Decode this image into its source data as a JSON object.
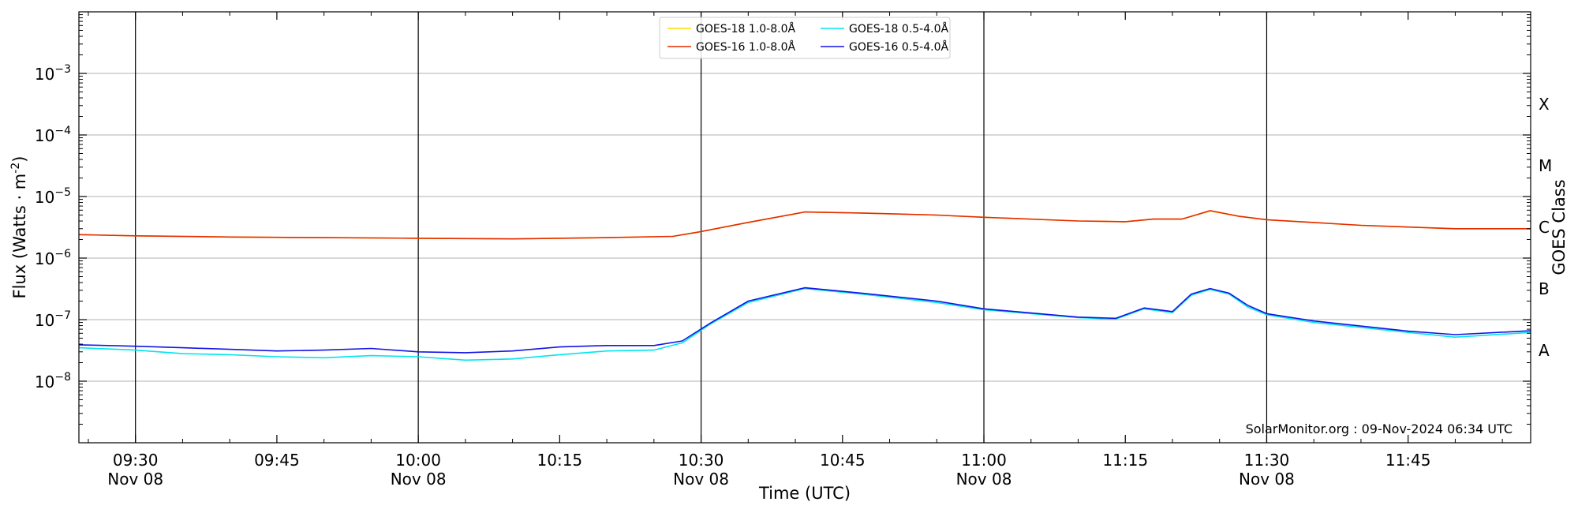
{
  "chart_data": {
    "type": "line",
    "xlabel": "Time (UTC)",
    "ylabel": "Flux (Watts · m",
    "ylabel_superscript": "-2",
    "ylabel_close": ")",
    "y2label": "GOES Class",
    "yscale": "log",
    "xlim": [
      "09:24",
      "11:58"
    ],
    "ylim": [
      1e-09,
      0.01
    ],
    "grid": "horizontal",
    "legend_position": "top-center",
    "watermark": "SolarMonitor.org : 09-Nov-2024 06:34 UTC",
    "x_ticks": [
      {
        "time": "09:30",
        "line1": "09:30",
        "line2": "Nov 08",
        "major": true
      },
      {
        "time": "09:45",
        "line1": "09:45",
        "line2": "",
        "major": false
      },
      {
        "time": "10:00",
        "line1": "10:00",
        "line2": "Nov 08",
        "major": true
      },
      {
        "time": "10:15",
        "line1": "10:15",
        "line2": "",
        "major": false
      },
      {
        "time": "10:30",
        "line1": "10:30",
        "line2": "Nov 08",
        "major": true
      },
      {
        "time": "10:45",
        "line1": "10:45",
        "line2": "",
        "major": false
      },
      {
        "time": "11:00",
        "line1": "11:00",
        "line2": "Nov 08",
        "major": true
      },
      {
        "time": "11:15",
        "line1": "11:15",
        "line2": "",
        "major": false
      },
      {
        "time": "11:30",
        "line1": "11:30",
        "line2": "Nov 08",
        "major": true
      },
      {
        "time": "11:45",
        "line1": "11:45",
        "line2": "",
        "major": false
      }
    ],
    "y_ticks": [
      {
        "value": 1e-08,
        "base": "10",
        "exp": "−8"
      },
      {
        "value": 1e-07,
        "base": "10",
        "exp": "−7"
      },
      {
        "value": 1e-06,
        "base": "10",
        "exp": "−6"
      },
      {
        "value": 1e-05,
        "base": "10",
        "exp": "−5"
      },
      {
        "value": 0.0001,
        "base": "10",
        "exp": "−4"
      },
      {
        "value": 0.001,
        "base": "10",
        "exp": "−3"
      }
    ],
    "goes_classes": [
      {
        "label": "A",
        "value": 3.16e-08
      },
      {
        "label": "B",
        "value": 3.16e-07
      },
      {
        "label": "C",
        "value": 3.16e-06
      },
      {
        "label": "M",
        "value": 3.16e-05
      },
      {
        "label": "X",
        "value": 0.000316
      }
    ],
    "series": [
      {
        "name": "GOES-18 1.0-8.0Å",
        "color": "#ffd700",
        "x": [
          "09:24",
          "09:30",
          "09:40",
          "09:50",
          "10:00",
          "10:10",
          "10:20",
          "10:27",
          "10:30",
          "10:35",
          "10:41",
          "10:47",
          "10:55",
          "11:00",
          "11:10",
          "11:15",
          "11:18",
          "11:21",
          "11:24",
          "11:27",
          "11:30",
          "11:40",
          "11:50",
          "11:58"
        ],
        "values": [
          2.4e-06,
          2.3e-06,
          2.2e-06,
          2.15e-06,
          2.1e-06,
          2.05e-06,
          2.15e-06,
          2.25e-06,
          2.7e-06,
          3.8e-06,
          5.6e-06,
          5.4e-06,
          5e-06,
          4.6e-06,
          4e-06,
          3.9e-06,
          4.3e-06,
          4.3e-06,
          5.8e-06,
          4.8e-06,
          4.2e-06,
          3.4e-06,
          3e-06,
          3e-06
        ]
      },
      {
        "name": "GOES-16 1.0-8.0Å",
        "color": "#e52b00",
        "x": [
          "09:24",
          "09:30",
          "09:40",
          "09:50",
          "10:00",
          "10:10",
          "10:20",
          "10:27",
          "10:30",
          "10:35",
          "10:41",
          "10:47",
          "10:55",
          "11:00",
          "11:10",
          "11:15",
          "11:18",
          "11:21",
          "11:24",
          "11:27",
          "11:30",
          "11:40",
          "11:50",
          "11:58"
        ],
        "values": [
          2.4e-06,
          2.3e-06,
          2.2e-06,
          2.15e-06,
          2.1e-06,
          2.05e-06,
          2.15e-06,
          2.25e-06,
          2.7e-06,
          3.8e-06,
          5.6e-06,
          5.4e-06,
          5e-06,
          4.6e-06,
          4e-06,
          3.9e-06,
          4.3e-06,
          4.3e-06,
          5.9e-06,
          4.8e-06,
          4.2e-06,
          3.4e-06,
          3e-06,
          3e-06
        ]
      },
      {
        "name": "GOES-18 0.5-4.0Å",
        "color": "#00e5ee",
        "x": [
          "09:24",
          "09:30",
          "09:35",
          "09:40",
          "09:45",
          "09:50",
          "09:55",
          "10:00",
          "10:05",
          "10:10",
          "10:15",
          "10:20",
          "10:25",
          "10:28",
          "10:31",
          "10:35",
          "10:41",
          "10:47",
          "10:55",
          "11:00",
          "11:10",
          "11:14",
          "11:17",
          "11:20",
          "11:22",
          "11:24",
          "11:26",
          "11:28",
          "11:30",
          "11:35",
          "11:45",
          "11:50",
          "11:58"
        ],
        "values": [
          3.5e-08,
          3.2e-08,
          2.8e-08,
          2.7e-08,
          2.5e-08,
          2.4e-08,
          2.6e-08,
          2.5e-08,
          2.2e-08,
          2.3e-08,
          2.7e-08,
          3.1e-08,
          3.2e-08,
          4.2e-08,
          8.5e-08,
          1.9e-07,
          3.2e-07,
          2.6e-07,
          1.9e-07,
          1.45e-07,
          1.08e-07,
          1.02e-07,
          1.5e-07,
          1.3e-07,
          2.5e-07,
          3.1e-07,
          2.6e-07,
          1.6e-07,
          1.2e-07,
          9e-08,
          6.2e-08,
          5.2e-08,
          6.2e-08
        ]
      },
      {
        "name": "GOES-16 0.5-4.0Å",
        "color": "#1414e6",
        "x": [
          "09:24",
          "09:30",
          "09:35",
          "09:40",
          "09:45",
          "09:50",
          "09:55",
          "10:00",
          "10:05",
          "10:10",
          "10:15",
          "10:20",
          "10:25",
          "10:28",
          "10:31",
          "10:35",
          "10:41",
          "10:47",
          "10:55",
          "11:00",
          "11:10",
          "11:14",
          "11:17",
          "11:20",
          "11:22",
          "11:24",
          "11:26",
          "11:28",
          "11:30",
          "11:35",
          "11:45",
          "11:50",
          "11:58"
        ],
        "values": [
          3.9e-08,
          3.7e-08,
          3.5e-08,
          3.3e-08,
          3.1e-08,
          3.2e-08,
          3.4e-08,
          3e-08,
          2.9e-08,
          3.1e-08,
          3.6e-08,
          3.8e-08,
          3.8e-08,
          4.5e-08,
          8.8e-08,
          2e-07,
          3.3e-07,
          2.7e-07,
          2e-07,
          1.5e-07,
          1.1e-07,
          1.05e-07,
          1.55e-07,
          1.35e-07,
          2.6e-07,
          3.2e-07,
          2.7e-07,
          1.7e-07,
          1.25e-07,
          9.5e-08,
          6.5e-08,
          5.7e-08,
          6.6e-08
        ]
      }
    ]
  }
}
